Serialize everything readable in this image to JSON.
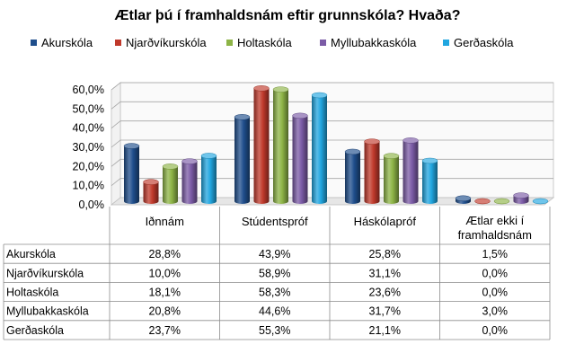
{
  "chart_data": {
    "type": "bar",
    "title": "Ætlar þú í framhaldsnám eftir grunnskóla? Hvaða?",
    "categories": [
      "Iðnnám",
      "Stúdentspróf",
      "Háskólapróf",
      "Ætlar ekki í framhaldsnám"
    ],
    "category_lines": [
      [
        "Iðnnám"
      ],
      [
        "Stúdentspróf"
      ],
      [
        "Háskólapróf"
      ],
      [
        "Ætlar ekki í",
        "framhaldsnám"
      ]
    ],
    "ylim": [
      0,
      60
    ],
    "yticks": [
      "0,0%",
      "10,0%",
      "20,0%",
      "30,0%",
      "40,0%",
      "50,0%",
      "60,0%"
    ],
    "grid": true,
    "legend_position": "top",
    "series": [
      {
        "name": "Akurskóla",
        "color": "#1F4E8C",
        "values": [
          28.8,
          43.9,
          25.8,
          1.5
        ],
        "labels": [
          "28,8%",
          "43,9%",
          "25,8%",
          "1,5%"
        ]
      },
      {
        "name": "Njarðvíkurskóla",
        "color": "#C0392B",
        "values": [
          10.0,
          58.9,
          31.1,
          0.0
        ],
        "labels": [
          "10,0%",
          "58,9%",
          "31,1%",
          "0,0%"
        ]
      },
      {
        "name": "Holtaskóla",
        "color": "#8DB446",
        "values": [
          18.1,
          58.3,
          23.6,
          0.0
        ],
        "labels": [
          "18,1%",
          "58,3%",
          "23,6%",
          "0,0%"
        ]
      },
      {
        "name": "Myllubakkaskóla",
        "color": "#7B5BA6",
        "values": [
          20.8,
          44.6,
          31.7,
          3.0
        ],
        "labels": [
          "20,8%",
          "44,6%",
          "31,7%",
          "3,0%"
        ]
      },
      {
        "name": "Gerðaskóla",
        "color": "#21A6E0",
        "values": [
          23.7,
          55.3,
          21.1,
          0.0
        ],
        "labels": [
          "23,7%",
          "55,3%",
          "21,1%",
          "0,0%"
        ]
      }
    ]
  }
}
